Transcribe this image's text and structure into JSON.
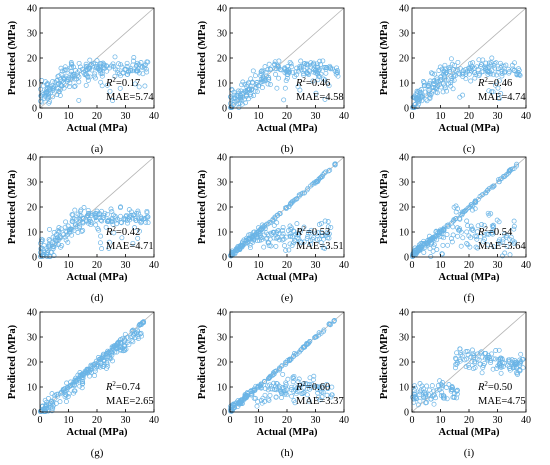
{
  "marker_color": "#6ab4e6",
  "diagonal_color": "#b4b4b4",
  "chart_data": [
    {
      "type": "scatter",
      "panel_label": "(a)",
      "xlabel": "Actual (MPa)",
      "ylabel": "Predicted (MPa)",
      "xlim": [
        0,
        40
      ],
      "ylim": [
        0,
        40
      ],
      "xticks": [
        "0",
        "10",
        "20",
        "30",
        "40"
      ],
      "yticks": [
        "0",
        "10",
        "20",
        "30",
        "40"
      ],
      "r2_label": "R",
      "r2_sup": "2",
      "r2_value": "=0.17",
      "mae": "MAE=5.74",
      "pattern": "plateau",
      "seed": 11
    },
    {
      "type": "scatter",
      "panel_label": "(b)",
      "xlabel": "Actual (MPa)",
      "ylabel": "Predicted (MPa)",
      "xlim": [
        0,
        40
      ],
      "ylim": [
        0,
        40
      ],
      "xticks": [
        "0",
        "10",
        "20",
        "30",
        "40"
      ],
      "yticks": [
        "0",
        "10",
        "20",
        "30",
        "40"
      ],
      "r2_label": "R",
      "r2_sup": "2",
      "r2_value": "=0.46",
      "mae": "MAE=4.58",
      "pattern": "plateau2",
      "seed": 23
    },
    {
      "type": "scatter",
      "panel_label": "(c)",
      "xlabel": "Actual (MPa)",
      "ylabel": "Predicted (MPa)",
      "xlim": [
        0,
        40
      ],
      "ylim": [
        0,
        40
      ],
      "xticks": [
        "0",
        "10",
        "20",
        "30",
        "40"
      ],
      "yticks": [
        "0",
        "10",
        "20",
        "30",
        "40"
      ],
      "r2_label": "R",
      "r2_sup": "2",
      "r2_value": "=0.46",
      "mae": "MAE=4.74",
      "pattern": "plateau2",
      "seed": 37
    },
    {
      "type": "scatter",
      "panel_label": "(d)",
      "xlabel": "Actual (MPa)",
      "ylabel": "Predicted (MPa)",
      "xlim": [
        0,
        40
      ],
      "ylim": [
        0,
        40
      ],
      "xticks": [
        "0",
        "10",
        "20",
        "30",
        "40"
      ],
      "yticks": [
        "0",
        "10",
        "20",
        "30",
        "40"
      ],
      "r2_label": "R",
      "r2_sup": "2",
      "r2_value": "=0.42",
      "mae": "MAE=4.71",
      "pattern": "plateau2",
      "seed": 41
    },
    {
      "type": "scatter",
      "panel_label": "(e)",
      "xlabel": "Actual (MPa)",
      "ylabel": "Predicted (MPa)",
      "xlim": [
        0,
        40
      ],
      "ylim": [
        0,
        40
      ],
      "xticks": [
        "0",
        "10",
        "20",
        "30",
        "40"
      ],
      "yticks": [
        "0",
        "10",
        "20",
        "30",
        "40"
      ],
      "r2_label": "R",
      "r2_sup": "2",
      "r2_value": "=0.53",
      "mae": "MAE=3.51",
      "pattern": "diag",
      "seed": 53
    },
    {
      "type": "scatter",
      "panel_label": "(f)",
      "xlabel": "Actual (MPa)",
      "ylabel": "Predicted (MPa)",
      "xlim": [
        0,
        40
      ],
      "ylim": [
        0,
        40
      ],
      "xticks": [
        "0",
        "10",
        "20",
        "30",
        "40"
      ],
      "yticks": [
        "0",
        "10",
        "20",
        "30",
        "40"
      ],
      "r2_label": "R",
      "r2_sup": "2",
      "r2_value": "=0.54",
      "mae": "MAE=3.64",
      "pattern": "diagspread",
      "seed": 67
    },
    {
      "type": "scatter",
      "panel_label": "(g)",
      "xlabel": "Actual (MPa)",
      "ylabel": "Predicted (MPa)",
      "xlim": [
        0,
        40
      ],
      "ylim": [
        0,
        40
      ],
      "xticks": [
        "0",
        "10",
        "20",
        "30",
        "40"
      ],
      "yticks": [
        "0",
        "10",
        "20",
        "30",
        "40"
      ],
      "r2_label": "R",
      "r2_sup": "2",
      "r2_value": "=0.74",
      "mae": "MAE=2.65",
      "pattern": "diaggood",
      "seed": 71
    },
    {
      "type": "scatter",
      "panel_label": "(h)",
      "xlabel": "Actual (MPa)",
      "ylabel": "Predicted (MPa)",
      "xlim": [
        0,
        40
      ],
      "ylim": [
        0,
        40
      ],
      "xticks": [
        "0",
        "10",
        "20",
        "30",
        "40"
      ],
      "yticks": [
        "0",
        "10",
        "20",
        "30",
        "40"
      ],
      "r2_label": "R",
      "r2_sup": "2",
      "r2_value": "=0.60",
      "mae": "MAE=3.37",
      "pattern": "diag",
      "seed": 83
    },
    {
      "type": "scatter",
      "panel_label": "(i)",
      "xlabel": "Actual (MPa)",
      "ylabel": "Predicted (MPa)",
      "xlim": [
        0,
        40
      ],
      "ylim": [
        0,
        40
      ],
      "xticks": [
        "0",
        "10",
        "20",
        "30",
        "40"
      ],
      "yticks": [
        "0",
        "10",
        "20",
        "30",
        "40"
      ],
      "r2_label": "R",
      "r2_sup": "2",
      "r2_value": "=0.50",
      "mae": "MAE=4.75",
      "pattern": "split",
      "seed": 97
    }
  ]
}
